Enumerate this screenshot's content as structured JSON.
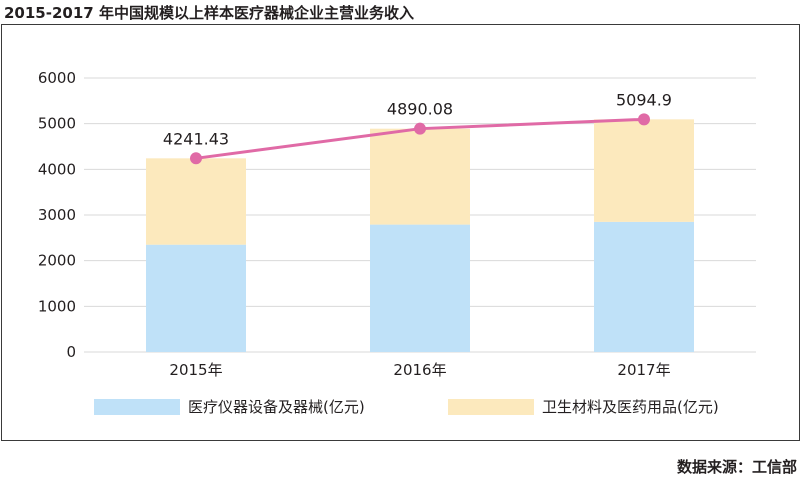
{
  "title": "2015-2017 年中国规模以上样本医疗器械企业主营业务收入",
  "source": "数据来源：工信部",
  "chart_data": {
    "type": "bar",
    "stacked": true,
    "categories": [
      "2015年",
      "2016年",
      "2017年"
    ],
    "series": [
      {
        "name": "医疗仪器设备及器械(亿元)",
        "values": [
          2350,
          2790,
          2850
        ],
        "color": "#bfe1f8"
      },
      {
        "name": "卫生材料及医药用品(亿元)",
        "values": [
          1891.43,
          2100.08,
          2244.9
        ],
        "color": "#fce9bd"
      }
    ],
    "line": {
      "values": [
        4241.43,
        4890.08,
        5094.9
      ],
      "labels": [
        "4241.43",
        "4890.08",
        "5094.9"
      ],
      "color": "#e06aa6"
    },
    "ylim": [
      0,
      6000
    ],
    "yticks": [
      "0",
      "1000",
      "2000",
      "3000",
      "4000",
      "5000",
      "6000"
    ],
    "grid": true,
    "legend": "bottom"
  }
}
